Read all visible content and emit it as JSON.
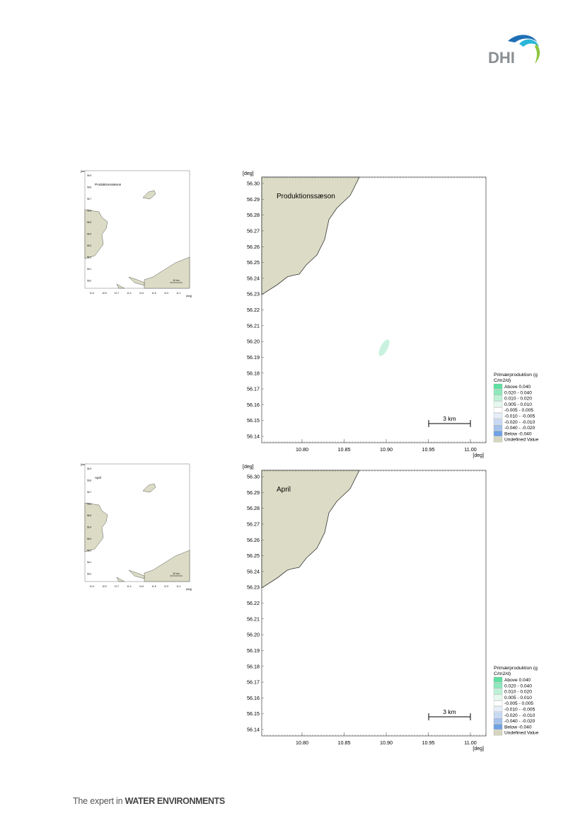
{
  "logo": {
    "text": "DHI",
    "colors": {
      "wave_dark": "#1f6fb5",
      "wave_light": "#29b6d8",
      "wave_green": "#8cc63f",
      "letters": "#8a8f93"
    }
  },
  "colors": {
    "land": "#dcdcc6",
    "coast": "#333333",
    "plume": "#c8f1df",
    "frame": "#555555"
  },
  "maps": [
    {
      "id": "production-season",
      "label": "Produktionssæson",
      "x_unit": "[deg]",
      "y_unit": "[deg]",
      "x_ticks": [
        "10.80",
        "10.85",
        "10.90",
        "10.95",
        "11.00"
      ],
      "y_ticks": [
        "56.30",
        "56.29",
        "56.28",
        "56.27",
        "56.26",
        "56.25",
        "56.24",
        "56.23",
        "56.22",
        "56.21",
        "56.20",
        "56.19",
        "56.18",
        "56.17",
        "56.16",
        "56.15",
        "56.14"
      ],
      "scale_bar": "3 km",
      "has_plume": true,
      "overview_label": "Produktionssæson",
      "overview_scale": "10 km",
      "overview_x_ticks": [
        "10.4",
        "10.5",
        "10.7",
        "11.4",
        "11.6",
        "11.8",
        "11.9",
        "11.1"
      ],
      "overview_y_ticks": [
        "56.9",
        "56.8",
        "56.7",
        "56.6",
        "56.5",
        "56.4",
        "56.3",
        "56.2",
        "56.1",
        "56.0"
      ],
      "legend": {
        "title": "Primærproduktion (g C/m2/d)",
        "title_line1": "Primærproduktion (g",
        "title_line2": "C/m2/d)",
        "items": [
          {
            "label": "Above    0.040",
            "color": "#5fe0a0"
          },
          {
            "label": "0.020 -  0.040",
            "color": "#8ee9bc"
          },
          {
            "label": "0.010 -  0.020",
            "color": "#bdf2d7"
          },
          {
            "label": "0.005 -  0.010",
            "color": "#e5faef"
          },
          {
            "label": "-0.005 -  0.005",
            "color": "#ffffff"
          },
          {
            "label": "-0.010 - -0.005",
            "color": "#e6eef9"
          },
          {
            "label": "-0.020 - -0.010",
            "color": "#c7d9f3"
          },
          {
            "label": "-0.040 - -0.020",
            "color": "#a3c2ec"
          },
          {
            "label": "Below   -0.040",
            "color": "#6fa3e3"
          },
          {
            "label": "Undefined Value",
            "color": "#d6d6c0"
          }
        ]
      }
    },
    {
      "id": "april",
      "label": "April",
      "x_unit": "[deg]",
      "y_unit": "[deg]",
      "x_ticks": [
        "10.80",
        "10.85",
        "10.90",
        "10.95",
        "11.00"
      ],
      "y_ticks": [
        "56.30",
        "56.29",
        "56.28",
        "56.27",
        "56.26",
        "56.25",
        "56.24",
        "56.23",
        "56.22",
        "56.21",
        "56.20",
        "56.19",
        "56.18",
        "56.17",
        "56.16",
        "56.15",
        "56.14"
      ],
      "scale_bar": "3 km",
      "has_plume": false,
      "overview_label": "April",
      "overview_scale": "10 km",
      "overview_x_ticks": [
        "10.4",
        "10.5",
        "10.7",
        "11.4",
        "11.6",
        "11.8",
        "11.9",
        "11.1"
      ],
      "overview_y_ticks": [
        "56.9",
        "56.8",
        "56.7",
        "56.6",
        "56.5",
        "56.4",
        "56.3",
        "56.2",
        "56.1",
        "56.0"
      ],
      "legend": {
        "title": "Primærproduktion (g C/m2/d)",
        "title_line1": "Primærproduktion (g",
        "title_line2": "C/m2/d)",
        "items": [
          {
            "label": "Above    0.040",
            "color": "#5fe0a0"
          },
          {
            "label": "0.020 -  0.040",
            "color": "#8ee9bc"
          },
          {
            "label": "0.010 -  0.020",
            "color": "#bdf2d7"
          },
          {
            "label": "0.005 -  0.010",
            "color": "#e5faef"
          },
          {
            "label": "-0.005 -  0.005",
            "color": "#ffffff"
          },
          {
            "label": "-0.010 - -0.005",
            "color": "#e6eef9"
          },
          {
            "label": "-0.020 - -0.010",
            "color": "#c7d9f3"
          },
          {
            "label": "-0.040 - -0.020",
            "color": "#a3c2ec"
          },
          {
            "label": "Below   -0.040",
            "color": "#6fa3e3"
          },
          {
            "label": "Undefined Value",
            "color": "#d6d6c0"
          }
        ]
      }
    }
  ],
  "footer": {
    "prefix": "The expert in ",
    "emphasis": "WATER ENVIRONMENTS"
  }
}
